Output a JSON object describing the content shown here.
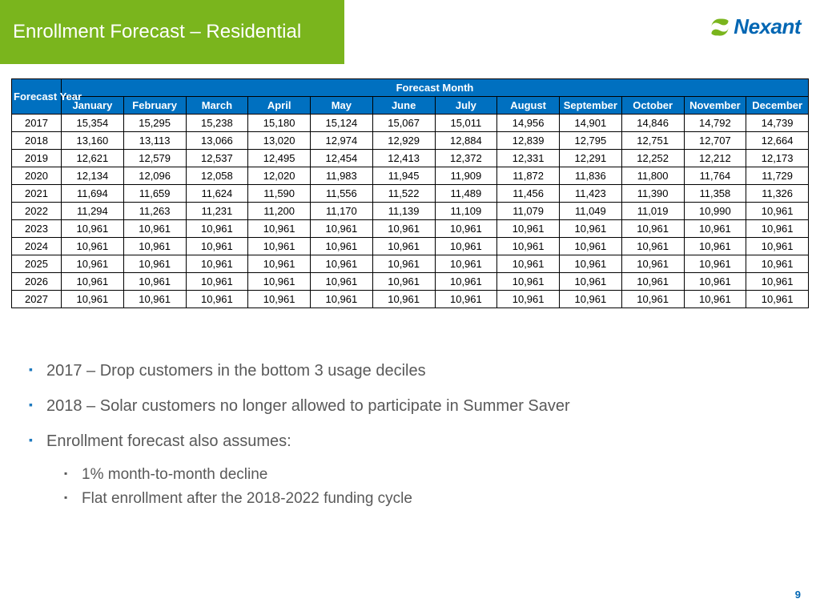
{
  "title": "Enrollment Forecast – Residential",
  "logo": {
    "name": "Nexant",
    "swirl_color": "#7ab51d",
    "text_color": "#0066b3"
  },
  "colors": {
    "title_bg": "#7ab51d",
    "header_bg": "#0070c0",
    "border": "#000000",
    "body_text": "#595959",
    "bullet_marker": "#1f7abf",
    "page_num": "#0066b3"
  },
  "table": {
    "corner_label": "Forecast Year",
    "span_label": "Forecast Month",
    "months": [
      "January",
      "February",
      "March",
      "April",
      "May",
      "June",
      "July",
      "August",
      "September",
      "October",
      "November",
      "December"
    ],
    "years": [
      "2017",
      "2018",
      "2019",
      "2020",
      "2021",
      "2022",
      "2023",
      "2024",
      "2025",
      "2026",
      "2027"
    ],
    "rows": [
      [
        "15,354",
        "15,295",
        "15,238",
        "15,180",
        "15,124",
        "15,067",
        "15,011",
        "14,956",
        "14,901",
        "14,846",
        "14,792",
        "14,739"
      ],
      [
        "13,160",
        "13,113",
        "13,066",
        "13,020",
        "12,974",
        "12,929",
        "12,884",
        "12,839",
        "12,795",
        "12,751",
        "12,707",
        "12,664"
      ],
      [
        "12,621",
        "12,579",
        "12,537",
        "12,495",
        "12,454",
        "12,413",
        "12,372",
        "12,331",
        "12,291",
        "12,252",
        "12,212",
        "12,173"
      ],
      [
        "12,134",
        "12,096",
        "12,058",
        "12,020",
        "11,983",
        "11,945",
        "11,909",
        "11,872",
        "11,836",
        "11,800",
        "11,764",
        "11,729"
      ],
      [
        "11,694",
        "11,659",
        "11,624",
        "11,590",
        "11,556",
        "11,522",
        "11,489",
        "11,456",
        "11,423",
        "11,390",
        "11,358",
        "11,326"
      ],
      [
        "11,294",
        "11,263",
        "11,231",
        "11,200",
        "11,170",
        "11,139",
        "11,109",
        "11,079",
        "11,049",
        "11,019",
        "10,990",
        "10,961"
      ],
      [
        "10,961",
        "10,961",
        "10,961",
        "10,961",
        "10,961",
        "10,961",
        "10,961",
        "10,961",
        "10,961",
        "10,961",
        "10,961",
        "10,961"
      ],
      [
        "10,961",
        "10,961",
        "10,961",
        "10,961",
        "10,961",
        "10,961",
        "10,961",
        "10,961",
        "10,961",
        "10,961",
        "10,961",
        "10,961"
      ],
      [
        "10,961",
        "10,961",
        "10,961",
        "10,961",
        "10,961",
        "10,961",
        "10,961",
        "10,961",
        "10,961",
        "10,961",
        "10,961",
        "10,961"
      ],
      [
        "10,961",
        "10,961",
        "10,961",
        "10,961",
        "10,961",
        "10,961",
        "10,961",
        "10,961",
        "10,961",
        "10,961",
        "10,961",
        "10,961"
      ],
      [
        "10,961",
        "10,961",
        "10,961",
        "10,961",
        "10,961",
        "10,961",
        "10,961",
        "10,961",
        "10,961",
        "10,961",
        "10,961",
        "10,961"
      ]
    ]
  },
  "bullets": [
    {
      "level": 1,
      "text": "2017 – Drop customers in the bottom 3 usage deciles"
    },
    {
      "level": 1,
      "text": "2018 – Solar customers no longer allowed to participate in Summer Saver"
    },
    {
      "level": 1,
      "text": "Enrollment forecast also assumes:"
    },
    {
      "level": 2,
      "text": "1% month-to-month decline"
    },
    {
      "level": 2,
      "text": "Flat enrollment after the 2018-2022 funding cycle"
    }
  ],
  "page_number": "9"
}
